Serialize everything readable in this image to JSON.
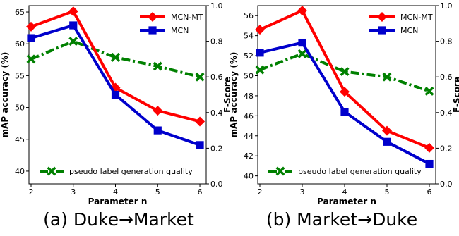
{
  "chart_data": [
    {
      "type": "line",
      "caption": "(a) Duke→Market",
      "x": [
        2,
        3,
        4,
        5,
        6
      ],
      "xlabel": "Parameter n",
      "ylabel": "mAP accuracy (%)",
      "ylabel_right": "F-Score",
      "xlim": [
        1.95,
        6.15
      ],
      "ylim": [
        38.0,
        66.0
      ],
      "ylim_right": [
        0.0,
        1.0
      ],
      "yticks": [
        40,
        45,
        50,
        55,
        60,
        65
      ],
      "yticks_right": [
        0.0,
        0.2,
        0.4,
        0.6,
        0.8,
        1.0
      ],
      "grid": false,
      "series": [
        {
          "name": "MCN-MT",
          "axis": "left",
          "color": "#ff0000",
          "marker": "diamond",
          "style": "solid",
          "values": [
            62.7,
            65.1,
            53.1,
            49.5,
            47.8
          ]
        },
        {
          "name": "MCN",
          "axis": "left",
          "color": "#0000cc",
          "marker": "square",
          "style": "solid",
          "values": [
            60.9,
            62.9,
            52.0,
            46.4,
            44.1
          ]
        },
        {
          "name": "pseudo label generation quality",
          "axis": "right",
          "color": "#008000",
          "marker": "x",
          "style": "dashdot",
          "values": [
            0.7,
            0.8,
            0.71,
            0.66,
            0.6
          ]
        }
      ],
      "legend_top": "top-right",
      "legend_bottom": "bottom-left"
    },
    {
      "type": "line",
      "caption": "(b) Market→Duke",
      "x": [
        2,
        3,
        4,
        5,
        6
      ],
      "xlabel": "Parameter n",
      "ylabel": "mAP accuracy (%)",
      "ylabel_right": "F-Score",
      "xlim": [
        1.95,
        6.15
      ],
      "ylim": [
        39.2,
        57.0
      ],
      "ylim_right": [
        0.0,
        1.0
      ],
      "yticks": [
        40,
        42,
        44,
        46,
        48,
        50,
        52,
        54,
        56
      ],
      "yticks_right": [
        0.0,
        0.2,
        0.4,
        0.6,
        0.8,
        1.0
      ],
      "grid": false,
      "series": [
        {
          "name": "MCN-MT",
          "axis": "left",
          "color": "#ff0000",
          "marker": "diamond",
          "style": "solid",
          "values": [
            54.6,
            56.5,
            48.4,
            44.5,
            42.8
          ]
        },
        {
          "name": "MCN",
          "axis": "left",
          "color": "#0000cc",
          "marker": "square",
          "style": "solid",
          "values": [
            52.3,
            53.3,
            46.4,
            43.4,
            41.2
          ]
        },
        {
          "name": "pseudo label generation quality",
          "axis": "right",
          "color": "#008000",
          "marker": "x",
          "style": "dashdot",
          "values": [
            0.64,
            0.73,
            0.63,
            0.6,
            0.52
          ]
        }
      ],
      "legend_top": "top-right",
      "legend_bottom": "bottom-left"
    }
  ]
}
